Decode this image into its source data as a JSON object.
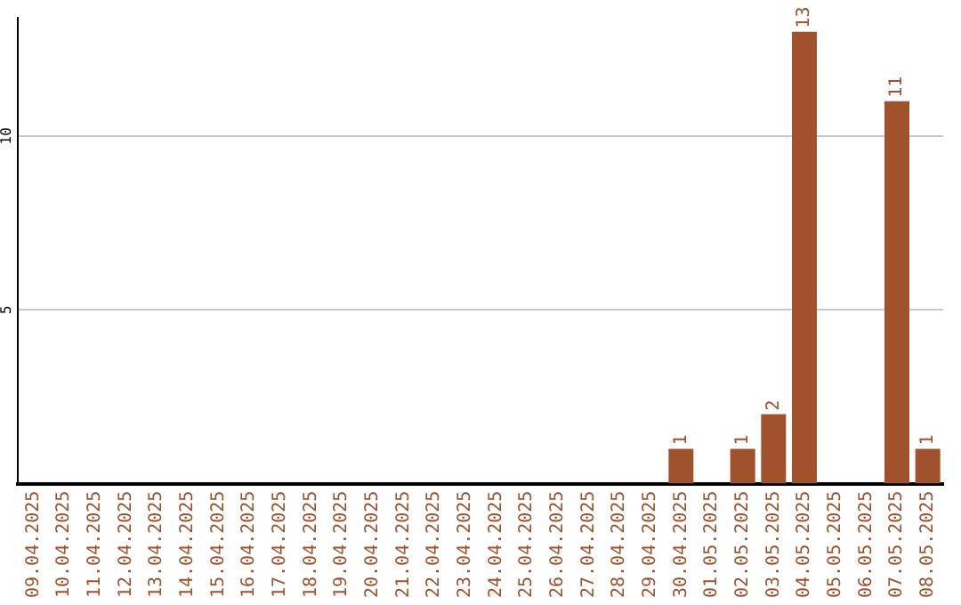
{
  "chart_data": {
    "type": "bar",
    "categories": [
      "09.04.2025",
      "10.04.2025",
      "11.04.2025",
      "12.04.2025",
      "13.04.2025",
      "14.04.2025",
      "15.04.2025",
      "16.04.2025",
      "17.04.2025",
      "18.04.2025",
      "19.04.2025",
      "20.04.2025",
      "21.04.2025",
      "22.04.2025",
      "23.04.2025",
      "24.04.2025",
      "25.04.2025",
      "26.04.2025",
      "27.04.2025",
      "28.04.2025",
      "29.04.2025",
      "30.04.2025",
      "01.05.2025",
      "02.05.2025",
      "03.05.2025",
      "04.05.2025",
      "05.05.2025",
      "06.05.2025",
      "07.05.2025",
      "08.05.2025"
    ],
    "values": [
      0,
      0,
      0,
      0,
      0,
      0,
      0,
      0,
      0,
      0,
      0,
      0,
      0,
      0,
      0,
      0,
      0,
      0,
      0,
      0,
      0,
      1,
      0,
      1,
      2,
      13,
      0,
      0,
      11,
      1
    ],
    "value_labels": [
      null,
      null,
      null,
      null,
      null,
      null,
      null,
      null,
      null,
      null,
      null,
      null,
      null,
      null,
      null,
      null,
      null,
      null,
      null,
      null,
      null,
      "1",
      null,
      "1",
      "2",
      "13",
      null,
      null,
      "11",
      "1"
    ],
    "color": "#a0522d",
    "ylim": [
      0,
      13.4
    ],
    "yticks": [
      5,
      10
    ],
    "grid": "y"
  }
}
